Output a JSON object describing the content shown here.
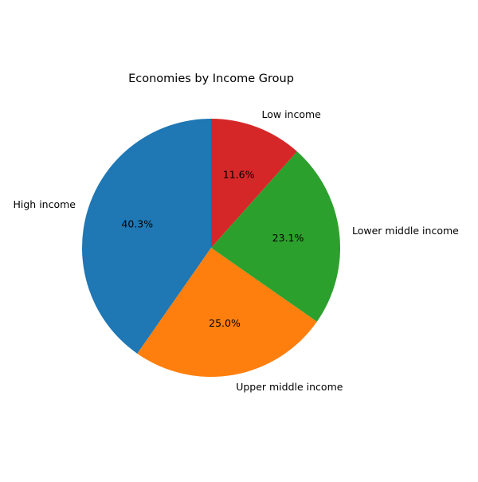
{
  "chart_data": {
    "type": "pie",
    "title": "Economies by Income Group",
    "categories": [
      "High income",
      "Upper middle income",
      "Lower middle income",
      "Low income"
    ],
    "values": [
      40.3,
      25.0,
      23.1,
      11.6
    ],
    "percent_labels": [
      "40.3%",
      "25.0%",
      "23.1%",
      "11.6%"
    ],
    "colors": [
      "#1f77b4",
      "#ff7f0e",
      "#2ca02c",
      "#d62728"
    ],
    "start_angle_deg": 90,
    "direction": "counterclockwise"
  }
}
